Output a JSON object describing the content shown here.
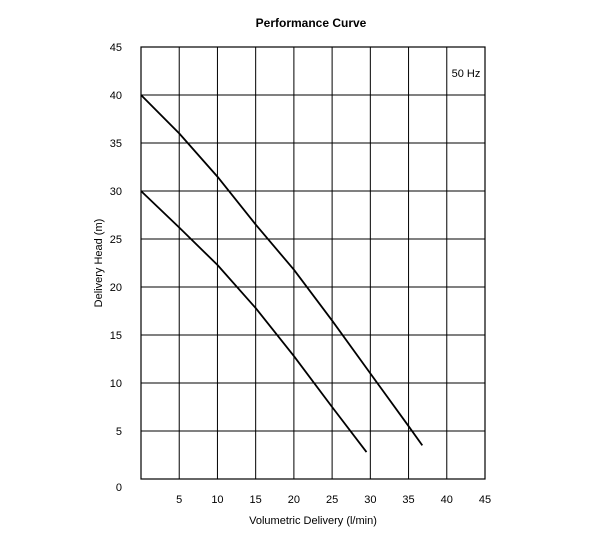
{
  "chart_data": {
    "type": "line",
    "title": "Performance Curve",
    "xlabel": "Volumetric Delivery (l/min)",
    "ylabel": "Delivery Head (m)",
    "xlim": [
      0,
      45
    ],
    "ylim": [
      0,
      45
    ],
    "x_ticks": [
      5,
      10,
      15,
      20,
      25,
      30,
      35,
      40,
      45
    ],
    "y_ticks": [
      0,
      5,
      10,
      15,
      20,
      25,
      30,
      35,
      40,
      45
    ],
    "grid": true,
    "annotation": "50 Hz",
    "line_color": "#000000",
    "series": [
      {
        "x": [
          0,
          5,
          10,
          15,
          20,
          25,
          30,
          35,
          36.8
        ],
        "y": [
          40,
          36,
          31.5,
          26.5,
          21.8,
          16.5,
          11,
          5.5,
          3.5
        ]
      },
      {
        "x": [
          0,
          5,
          10,
          15,
          20,
          25,
          29.5
        ],
        "y": [
          30,
          26.2,
          22.3,
          17.8,
          12.8,
          7.5,
          2.8
        ]
      }
    ]
  }
}
